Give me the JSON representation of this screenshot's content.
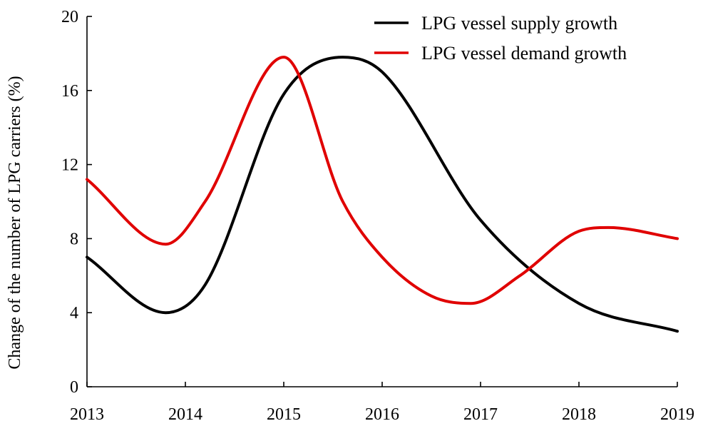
{
  "chart_data": {
    "type": "line",
    "title": "",
    "xlabel": "",
    "ylabel": "Change of the number of LPG carriers (%)",
    "xlim": [
      2013,
      2019
    ],
    "ylim": [
      0,
      20
    ],
    "xticks": [
      2013,
      2014,
      2015,
      2016,
      2017,
      2018,
      2019
    ],
    "yticks": [
      0,
      4,
      8,
      12,
      16,
      20
    ],
    "legend_position": "top-right",
    "grid": false,
    "series": [
      {
        "name": "LPG vessel supply growth",
        "color": "#000000",
        "x": [
          2013,
          2013.8,
          2014.2,
          2015,
          2015.6,
          2016,
          2017,
          2018,
          2019
        ],
        "y": [
          7.0,
          4.0,
          5.5,
          15.8,
          17.8,
          17.0,
          9.0,
          4.5,
          3.0
        ]
      },
      {
        "name": "LPG vessel demand growth",
        "color": "#e00000",
        "x": [
          2013,
          2013.8,
          2014.2,
          2015,
          2015.6,
          2016,
          2016.5,
          2016.9,
          2017.4,
          2018,
          2018.3,
          2019
        ],
        "y": [
          11.2,
          7.7,
          10.0,
          17.8,
          10.0,
          7.0,
          4.9,
          4.5,
          6.0,
          8.4,
          8.6,
          8.0
        ]
      }
    ]
  }
}
